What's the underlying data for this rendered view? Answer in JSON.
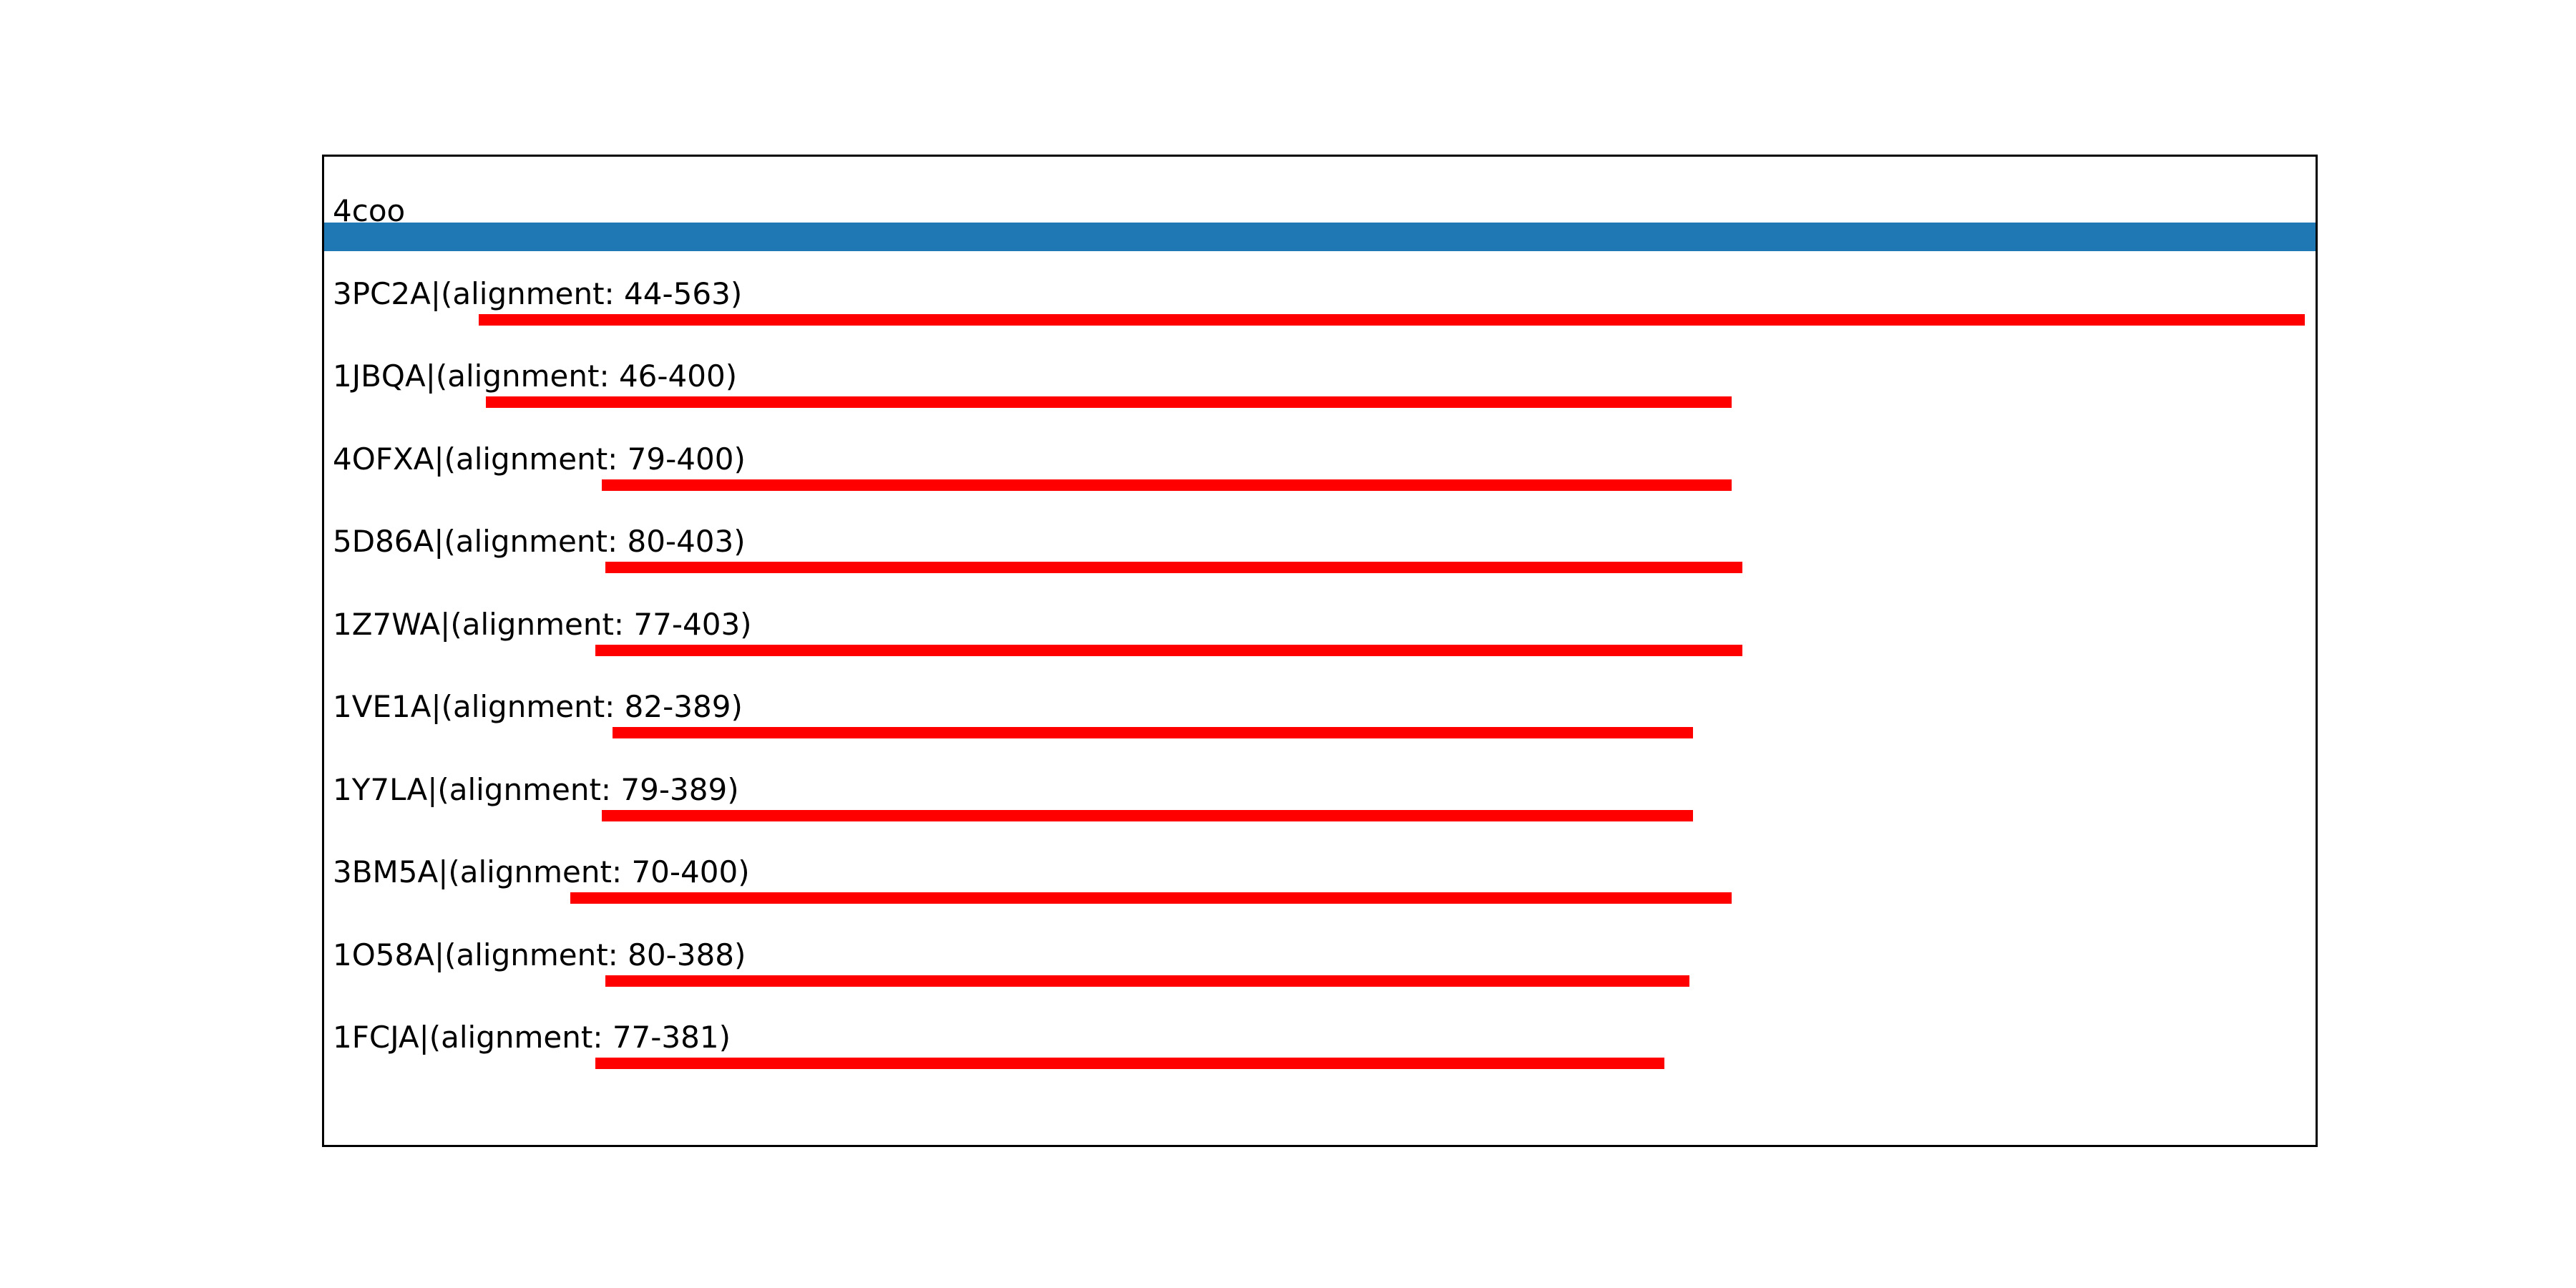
{
  "chart_data": {
    "type": "bar",
    "orientation": "horizontal",
    "title": "",
    "xlabel": "",
    "ylabel": "",
    "x_range": [
      0,
      566
    ],
    "grid": false,
    "legend": null,
    "axes_ticks_visible": false,
    "query": {
      "label": "4coo",
      "start": 0,
      "end": 566
    },
    "hits": [
      {
        "label": "3PC2A|(alignment: 44-563)",
        "start": 44,
        "end": 563
      },
      {
        "label": "1JBQA|(alignment: 46-400)",
        "start": 46,
        "end": 400
      },
      {
        "label": "4OFXA|(alignment: 79-400)",
        "start": 79,
        "end": 400
      },
      {
        "label": "5D86A|(alignment: 80-403)",
        "start": 80,
        "end": 403
      },
      {
        "label": "1Z7WA|(alignment: 77-403)",
        "start": 77,
        "end": 403
      },
      {
        "label": "1VE1A|(alignment: 82-389)",
        "start": 82,
        "end": 389
      },
      {
        "label": "1Y7LA|(alignment: 79-389)",
        "start": 79,
        "end": 389
      },
      {
        "label": "3BM5A|(alignment: 70-400)",
        "start": 70,
        "end": 400
      },
      {
        "label": "1O58A|(alignment: 80-388)",
        "start": 80,
        "end": 388
      },
      {
        "label": "1FCJA|(alignment: 77-381)",
        "start": 77,
        "end": 381
      }
    ],
    "colors": {
      "query_bar": "#1f77b4",
      "hit_bar": "#ff0000",
      "text": "#000000",
      "frame": "#000000",
      "background": "#ffffff"
    }
  }
}
